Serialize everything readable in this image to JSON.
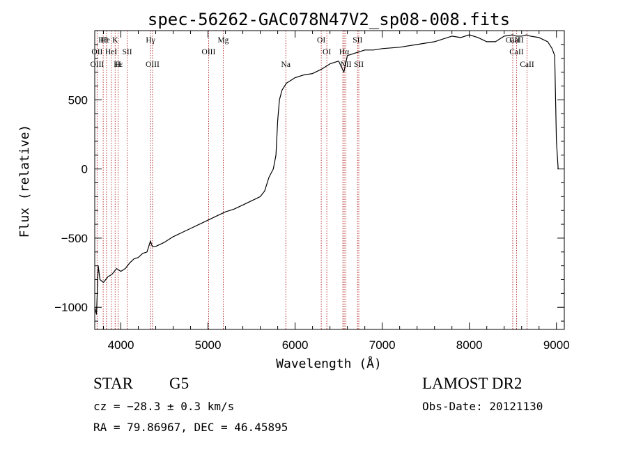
{
  "chart_data": {
    "type": "line",
    "title": "spec-56262-GAC078N47V2_sp08-008.fits",
    "xlabel": "Wavelength (Å)",
    "ylabel": "Flux (relative)",
    "xlim": [
      3700,
      9090
    ],
    "ylim": [
      -1160,
      1000
    ],
    "xticks": [
      4000,
      5000,
      6000,
      7000,
      8000,
      9000
    ],
    "yticks": [
      -1000,
      -500,
      0,
      500
    ],
    "xtick_labels": [
      "4000",
      "5000",
      "6000",
      "7000",
      "8000",
      "9000"
    ],
    "ytick_labels": [
      "−1000",
      "−500",
      "0",
      "500"
    ],
    "grid": false,
    "series": [
      {
        "x": [
          3700,
          3720,
          3740,
          3760,
          3800,
          3850,
          3900,
          3950,
          4000,
          4050,
          4100,
          4150,
          4200,
          4250,
          4300,
          4340,
          4360,
          4400,
          4500,
          4600,
          4700,
          4800,
          4900,
          5000,
          5100,
          5200,
          5300,
          5400,
          5500,
          5600,
          5650,
          5700,
          5750,
          5780,
          5800,
          5820,
          5850,
          5900,
          6000,
          6100,
          6200,
          6300,
          6400,
          6500,
          6560,
          6600,
          6700,
          6800,
          6900,
          7000,
          7200,
          7400,
          7600,
          7800,
          7900,
          8000,
          8100,
          8200,
          8300,
          8400,
          8500,
          8540,
          8600,
          8660,
          8700,
          8800,
          8900,
          8950,
          8980,
          9000,
          9020
        ],
        "y": [
          -1000,
          -1050,
          -700,
          -800,
          -820,
          -780,
          -760,
          -720,
          -740,
          -720,
          -680,
          -650,
          -640,
          -610,
          -600,
          -520,
          -560,
          -560,
          -530,
          -490,
          -460,
          -430,
          -400,
          -370,
          -340,
          -310,
          -290,
          -260,
          -230,
          -200,
          -160,
          -60,
          0,
          100,
          350,
          500,
          570,
          620,
          660,
          680,
          690,
          720,
          760,
          780,
          700,
          820,
          840,
          860,
          860,
          870,
          880,
          900,
          920,
          960,
          950,
          970,
          950,
          920,
          920,
          960,
          970,
          960,
          960,
          970,
          960,
          950,
          920,
          870,
          820,
          200,
          0
        ]
      }
    ],
    "annotations": [
      {
        "label": "Hθ",
        "x": 3797,
        "row": 0
      },
      {
        "label": "He",
        "x": 3820,
        "row": 0
      },
      {
        "label": "K",
        "x": 3934,
        "row": 0
      },
      {
        "label": "Hγ",
        "x": 4340,
        "row": 0
      },
      {
        "label": "Mg",
        "x": 5175,
        "row": 0
      },
      {
        "label": "OI",
        "x": 6300,
        "row": 0
      },
      {
        "label": "SII",
        "x": 6717,
        "row": 0
      },
      {
        "label": "CaII",
        "x": 8498,
        "row": 0
      },
      {
        "label": "CaII",
        "x": 8542,
        "row": 0
      },
      {
        "label": "OII",
        "x": 3727,
        "row": 1
      },
      {
        "label": "HeI",
        "x": 3888,
        "row": 1
      },
      {
        "label": "SII",
        "x": 4072,
        "row": 1
      },
      {
        "label": "OIII",
        "x": 5007,
        "row": 1
      },
      {
        "label": "OI",
        "x": 6364,
        "row": 1
      },
      {
        "label": "Hα",
        "x": 6563,
        "row": 1
      },
      {
        "label": "CaII",
        "x": 8542,
        "row": 1
      },
      {
        "label": "OIII",
        "x": 3727,
        "row": 2
      },
      {
        "label": "Hε",
        "x": 3970,
        "row": 2
      },
      {
        "label": "H",
        "x": 3968,
        "row": 2
      },
      {
        "label": "OIII",
        "x": 4363,
        "row": 2
      },
      {
        "label": "Na",
        "x": 5893,
        "row": 2
      },
      {
        "label": "NII",
        "x": 6583,
        "row": 2
      },
      {
        "label": "SII",
        "x": 6731,
        "row": 2
      },
      {
        "label": "CaII",
        "x": 8662,
        "row": 2
      }
    ],
    "line_markers": [
      3727,
      3797,
      3835,
      3889,
      3934,
      3968,
      4072,
      4340,
      4363,
      5007,
      5175,
      5893,
      6300,
      6364,
      6548,
      6563,
      6583,
      6717,
      6731,
      8498,
      8542,
      8662
    ],
    "line_marker_color": "#b22222",
    "spectrum_color": "#000000"
  },
  "footer": {
    "object_type": "STAR",
    "subclass": "G5",
    "survey": "LAMOST DR2",
    "redshift": "cz = −28.3 ± 0.3 km/s",
    "obs_date": "Obs-Date: 20121130",
    "coords": "RA =  79.86967, DEC =  46.45895"
  }
}
